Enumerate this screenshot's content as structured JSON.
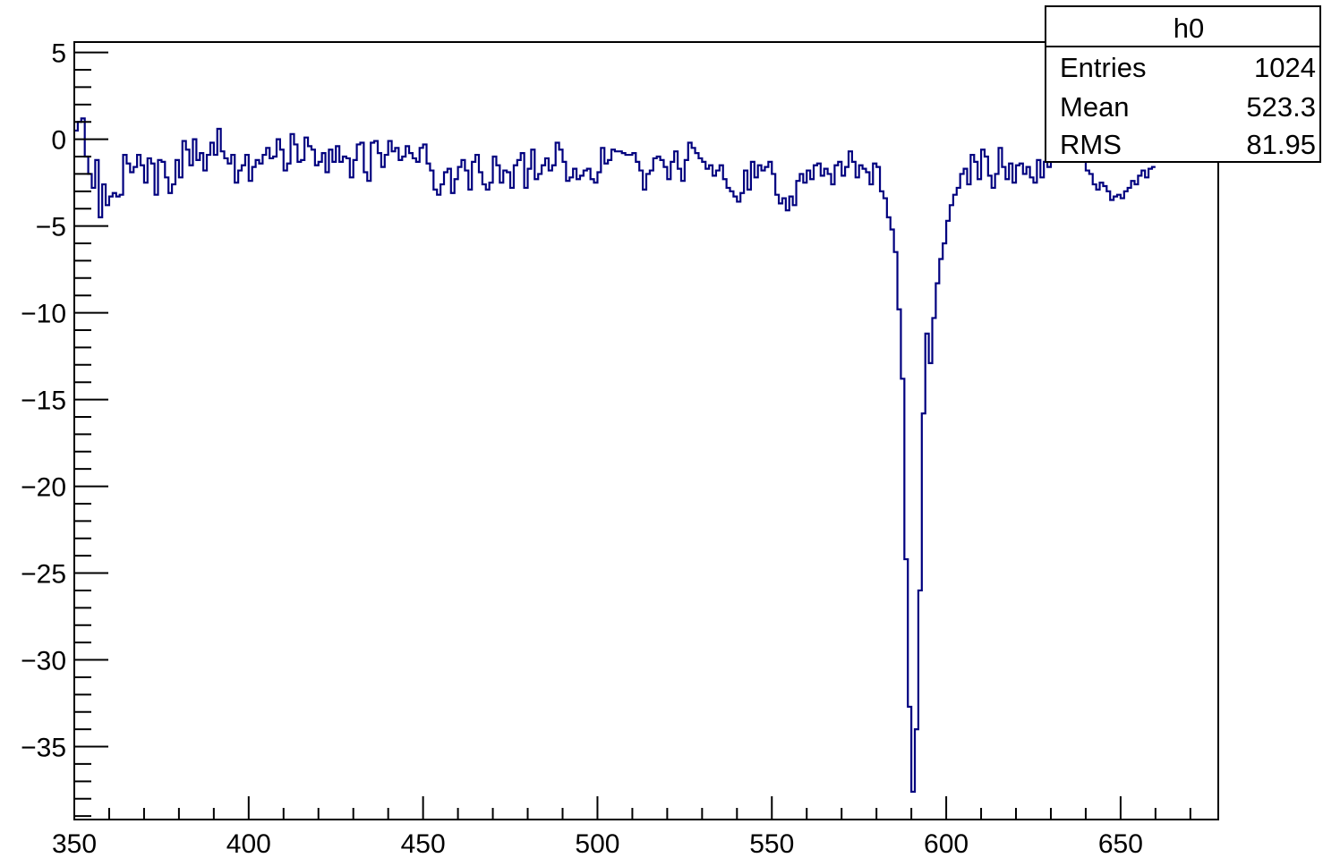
{
  "chart_data": {
    "type": "line",
    "style": "histogram-step",
    "title": "",
    "xlabel": "",
    "ylabel": "",
    "xlim": [
      350,
      678
    ],
    "ylim": [
      -39.2,
      5.6
    ],
    "grid": false,
    "line_color": "#00007f",
    "x_ticks": [
      "350",
      "400",
      "450",
      "500",
      "550",
      "600",
      "650"
    ],
    "x_tick_values": [
      350,
      400,
      450,
      500,
      550,
      600,
      650
    ],
    "y_ticks": [
      "5",
      "0",
      "−5",
      "−10",
      "−15",
      "−20",
      "−25",
      "−30",
      "−35"
    ],
    "y_tick_values": [
      5,
      0,
      -5,
      -10,
      -15,
      -20,
      -25,
      -30,
      -35
    ],
    "bin_start": 350,
    "bin_width": 1,
    "series": [
      {
        "values": [
          0.5,
          1.0,
          1.2,
          -1.0,
          -2.0,
          -2.8,
          -1.2,
          -4.5,
          -2.6,
          -3.8,
          -3.3,
          -3.1,
          -3.3,
          -3.2,
          -0.9,
          -1.4,
          -1.9,
          -1.6,
          -0.9,
          -1.5,
          -2.5,
          -1.1,
          -1.4,
          -3.2,
          -1.2,
          -1.3,
          -2.2,
          -3.1,
          -2.6,
          -1.2,
          -2.2,
          -0.1,
          -0.6,
          -1.5,
          0.0,
          -1.2,
          -0.8,
          -1.8,
          -0.9,
          -0.2,
          -0.9,
          0.6,
          -0.7,
          -1.1,
          -1.4,
          -0.9,
          -2.5,
          -1.8,
          -1.5,
          -0.9,
          -2.4,
          -1.6,
          -1.2,
          -1.4,
          -0.9,
          -0.5,
          -1.1,
          -1.0,
          0.0,
          -0.6,
          -1.8,
          -1.4,
          0.3,
          -0.3,
          -1.3,
          -1.2,
          0.1,
          -0.4,
          -0.6,
          -1.5,
          -1.3,
          -0.8,
          -1.9,
          -0.6,
          -1.3,
          -0.4,
          -1.3,
          -1.0,
          -1.1,
          -2.2,
          -1.2,
          -0.3,
          -0.2,
          -1.9,
          -2.4,
          -0.2,
          -0.1,
          -0.8,
          -1.6,
          -0.9,
          -0.1,
          -0.7,
          -0.5,
          -1.2,
          -1.0,
          -0.4,
          -0.8,
          -1.1,
          -1.3,
          -0.5,
          -0.3,
          -1.4,
          -1.8,
          -2.9,
          -3.2,
          -2.6,
          -1.9,
          -1.7,
          -3.1,
          -2.3,
          -1.6,
          -1.2,
          -1.8,
          -2.9,
          -1.3,
          -0.9,
          -1.9,
          -2.6,
          -2.9,
          -2.5,
          -1.0,
          -1.5,
          -2.5,
          -1.8,
          -1.9,
          -2.8,
          -1.5,
          -1.2,
          -0.8,
          -2.8,
          -1.7,
          -0.6,
          -2.3,
          -2.0,
          -1.5,
          -1.1,
          -1.8,
          -1.5,
          -0.2,
          -0.6,
          -1.3,
          -2.4,
          -2.2,
          -1.7,
          -2.3,
          -2.1,
          -1.8,
          -1.7,
          -2.3,
          -2.5,
          -1.9,
          -0.5,
          -1.4,
          -1.2,
          -0.6,
          -0.7,
          -0.7,
          -0.8,
          -0.9,
          -0.9,
          -0.8,
          -1.3,
          -1.8,
          -2.9,
          -2.0,
          -1.8,
          -1.1,
          -1.0,
          -1.2,
          -1.6,
          -2.3,
          -1.3,
          -0.7,
          -1.7,
          -2.4,
          -1.2,
          -0.2,
          -0.5,
          -0.8,
          -1.1,
          -1.3,
          -1.7,
          -1.5,
          -2.1,
          -1.8,
          -1.5,
          -2.3,
          -2.8,
          -3.0,
          -3.3,
          -3.6,
          -3.1,
          -1.8,
          -2.9,
          -1.3,
          -2.2,
          -1.5,
          -1.8,
          -1.6,
          -1.3,
          -2.0,
          -3.2,
          -3.7,
          -3.4,
          -4.1,
          -3.3,
          -3.8,
          -2.4,
          -2.0,
          -2.5,
          -1.8,
          -2.3,
          -1.5,
          -1.4,
          -2.1,
          -1.7,
          -2.0,
          -2.6,
          -1.5,
          -1.3,
          -2.1,
          -1.6,
          -0.7,
          -1.3,
          -2.2,
          -1.5,
          -1.7,
          -1.9,
          -2.6,
          -1.4,
          -1.6,
          -3.0,
          -3.4,
          -4.5,
          -5.2,
          -6.5,
          -9.8,
          -13.8,
          -24.2,
          -32.7,
          -37.6,
          -34.0,
          -26.0,
          -15.8,
          -11.2,
          -12.9,
          -10.3,
          -8.3,
          -6.9,
          -6.0,
          -4.7,
          -3.8,
          -3.2,
          -2.8,
          -2.0,
          -1.7,
          -2.6,
          -0.9,
          -1.3,
          -2.3,
          -0.6,
          -1.0,
          -2.1,
          -2.8,
          -2.0,
          -0.5,
          -1.6,
          -2.3,
          -1.4,
          -2.5,
          -1.5,
          -1.4,
          -2.0,
          -1.6,
          -2.2,
          -2.5,
          -1.2,
          -2.2,
          -1.3,
          -1.6,
          -0.8,
          -0.4,
          -0.6,
          0.2,
          0.6,
          0.1,
          -0.4,
          -0.9,
          -1.3,
          -0.9,
          -1.8,
          -2.0,
          -2.6,
          -2.9,
          -2.5,
          -2.7,
          -3.0,
          -3.5,
          -3.3,
          -3.2,
          -3.4,
          -3.0,
          -2.8,
          -2.4,
          -2.6,
          -2.1,
          -1.8,
          -2.2,
          -1.7,
          -1.6
        ]
      }
    ]
  },
  "stats_box": {
    "title": "h0",
    "rows": [
      {
        "label": "Entries",
        "value": "1024"
      },
      {
        "label": "Mean",
        "value": "523.3"
      },
      {
        "label": "RMS",
        "value": "81.95"
      }
    ]
  }
}
